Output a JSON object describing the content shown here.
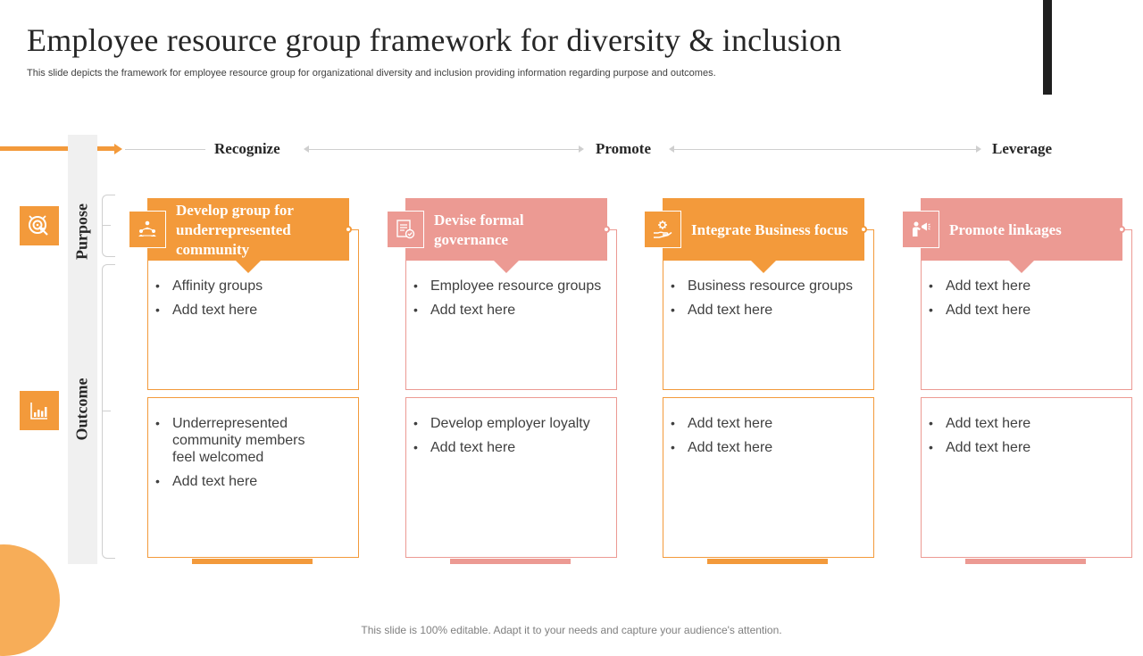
{
  "slide": {
    "title": "Employee resource group framework for diversity & inclusion",
    "subtitle": "This slide depicts the framework for employee resource group for organizational diversity and inclusion providing information regarding purpose and outcomes.",
    "footer": "This slide is 100% editable. Adapt it to your needs and capture your audience's attention."
  },
  "stages": [
    "Recognize",
    "Promote",
    "Leverage"
  ],
  "rows": {
    "purpose": {
      "label": "Purpose",
      "icon": "target-cursor-icon"
    },
    "outcome": {
      "label": "Outcome",
      "icon": "bar-chart-icon"
    }
  },
  "colors": {
    "orange": "#f39a3b",
    "pink": "#ec9a93",
    "dark": "#262626",
    "grey_band": "#f0f0f0"
  },
  "columns": [
    {
      "header": "Develop group for underrepresented community",
      "icon": "community-network-icon",
      "accent": "#f39a3b",
      "purpose_items": [
        "Affinity groups",
        "Add text here"
      ],
      "outcome_items": [
        "Underrepresented community members feel welcomed",
        "Add text here"
      ]
    },
    {
      "header": "Devise formal governance",
      "icon": "governance-document-icon",
      "accent": "#ec9a93",
      "purpose_items": [
        "Employee resource groups",
        "Add text here"
      ],
      "outcome_items": [
        "Develop employer loyalty",
        "Add text here"
      ]
    },
    {
      "header": "Integrate Business focus",
      "icon": "hand-gear-icon",
      "accent": "#f39a3b",
      "purpose_items": [
        "Business resource groups",
        "Add text here"
      ],
      "outcome_items": [
        "Add text here",
        "Add text here"
      ]
    },
    {
      "header": "Promote linkages",
      "icon": "megaphone-person-icon",
      "accent": "#ec9a93",
      "purpose_items": [
        "Add text here",
        "Add text here"
      ],
      "outcome_items": [
        "Add text here",
        "Add text here"
      ]
    }
  ]
}
